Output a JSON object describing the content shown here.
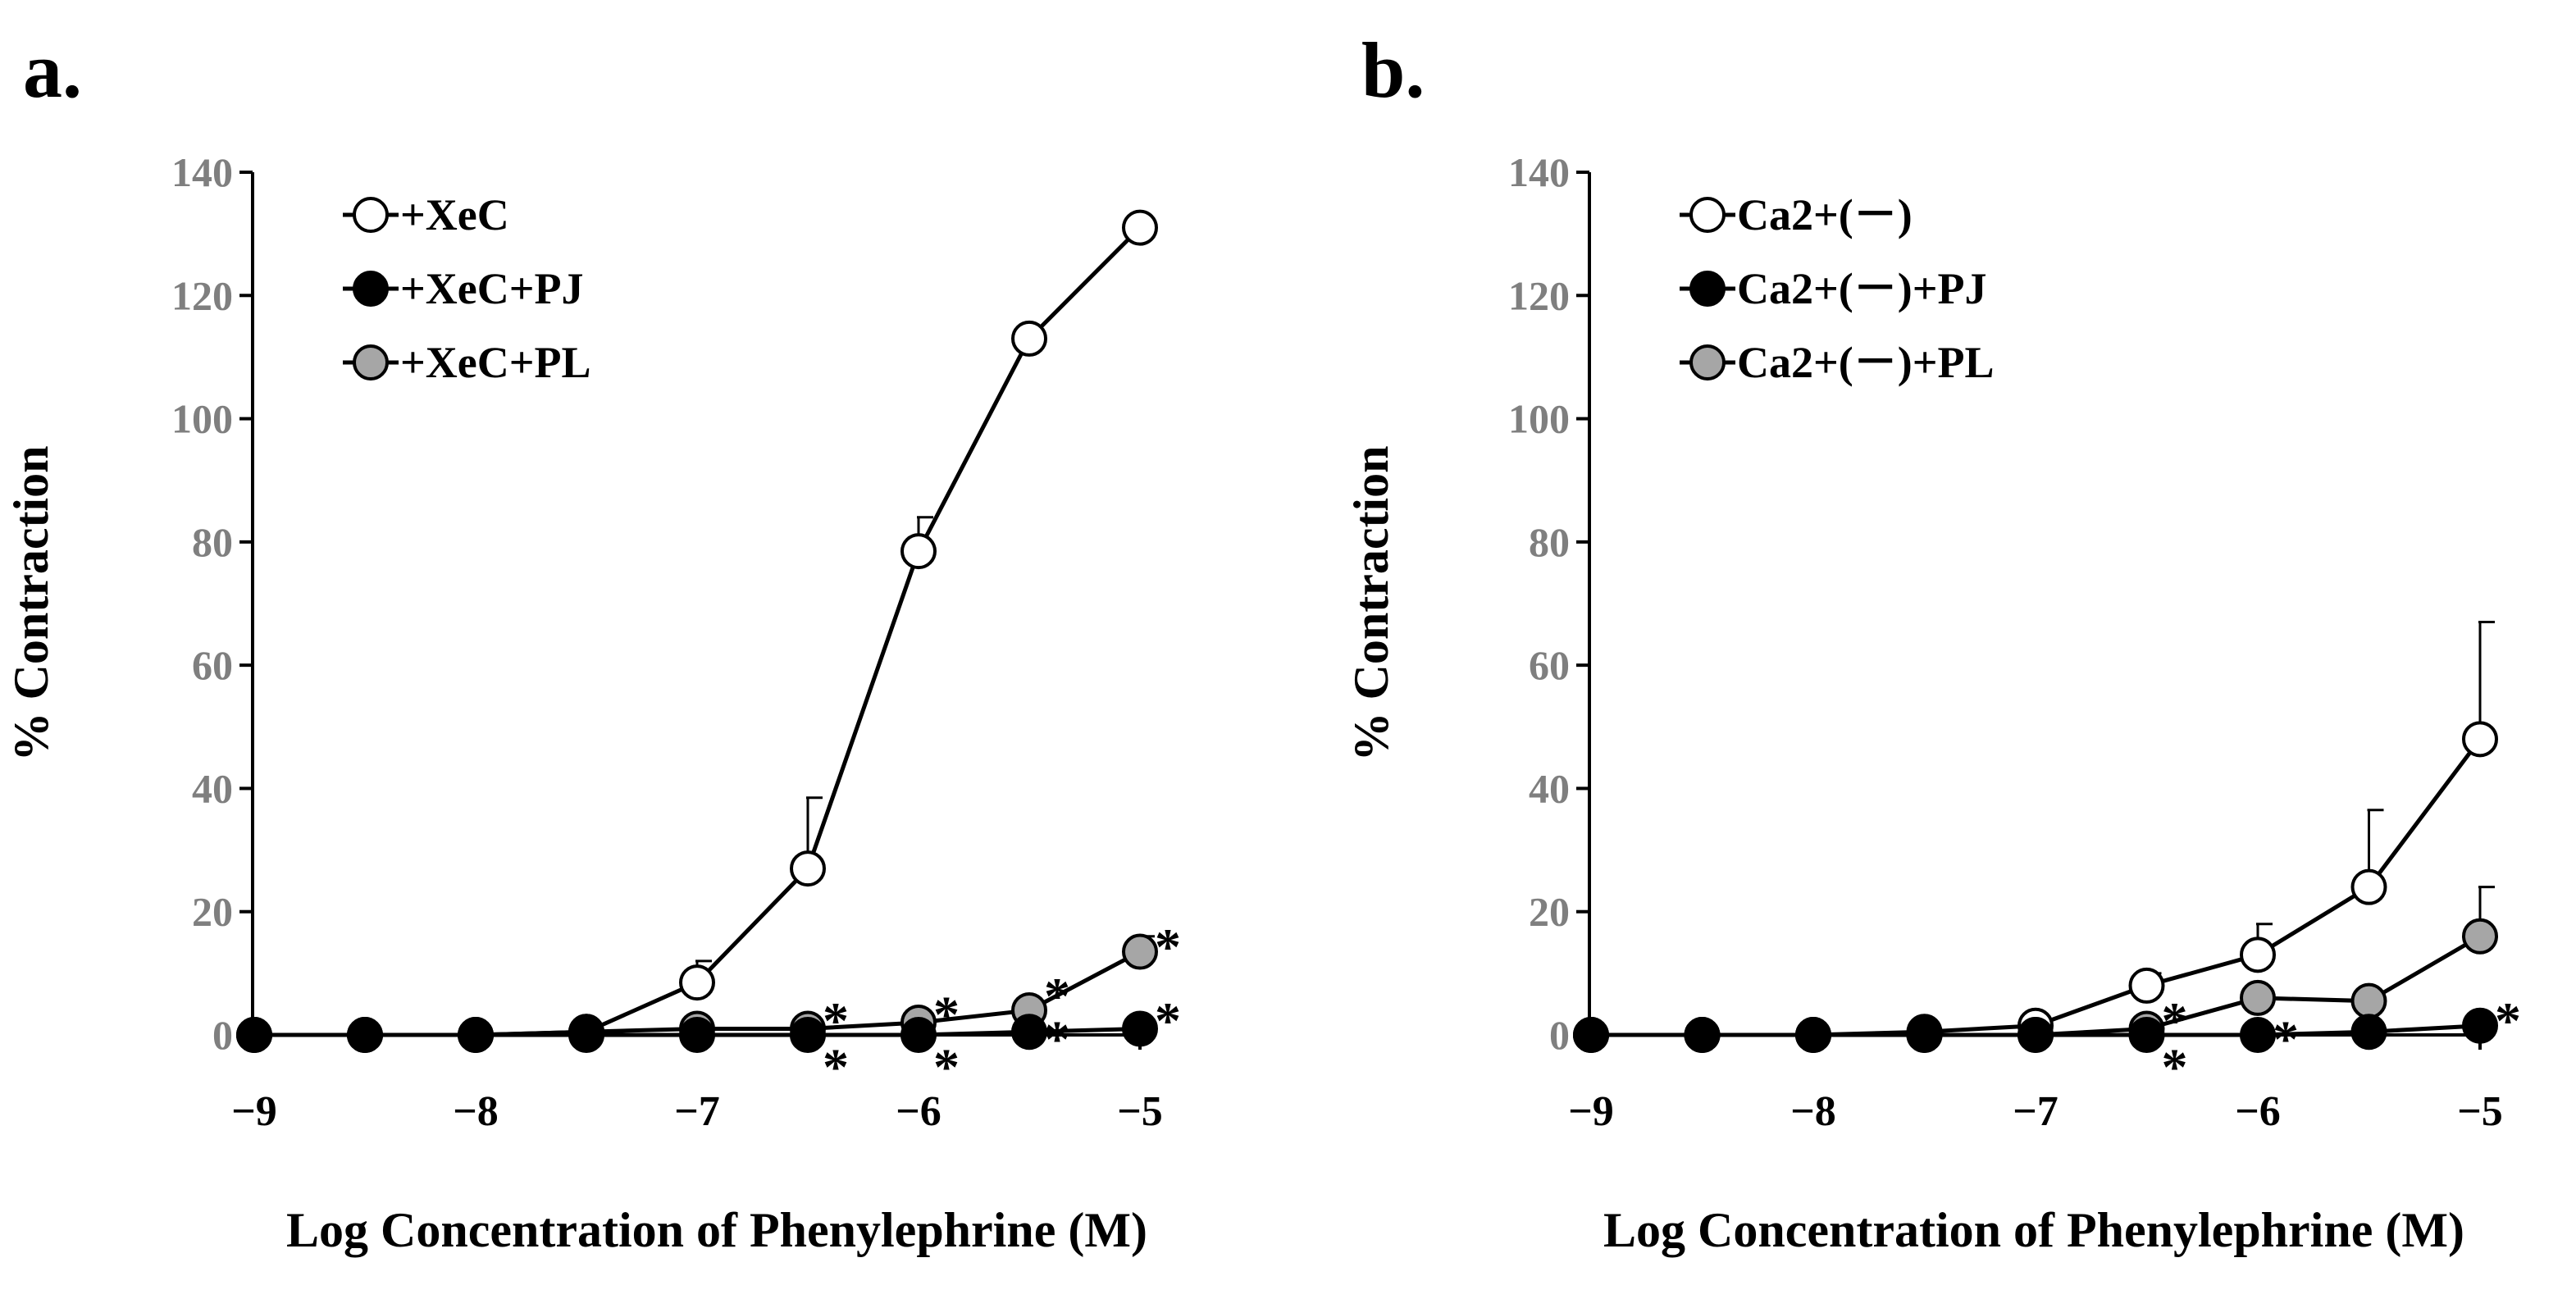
{
  "chart_data": [
    {
      "type": "line",
      "panel_label": "a.",
      "xlabel": "Log Concentration of Phenylephrine (M)",
      "ylabel": "% Contraction",
      "xlim": [
        -9,
        -5
      ],
      "ylim": [
        0,
        140
      ],
      "xticks": [
        -9,
        -8,
        -7,
        -6,
        -5
      ],
      "xtick_labels": [
        "−9",
        "−8",
        "−7",
        "−6",
        "−5"
      ],
      "yticks": [
        0,
        20,
        40,
        60,
        80,
        100,
        120,
        140
      ],
      "ytick_labels": [
        "0",
        "20",
        "40",
        "60",
        "80",
        "100",
        "120",
        "140"
      ],
      "legend_position": "top-left",
      "x": [
        -9,
        -8.5,
        -8,
        -7.5,
        -7,
        -6.5,
        -6,
        -5.5,
        -5
      ],
      "series": [
        {
          "name": "+XeC",
          "marker": "open",
          "fill": "#ffffff",
          "values": [
            0,
            0,
            0,
            0.5,
            8.5,
            27,
            78.5,
            113,
            131
          ],
          "errors": [
            0,
            0,
            0,
            0,
            3.5,
            11.5,
            5.5,
            0,
            0
          ]
        },
        {
          "name": "+XeC+PJ",
          "marker": "black",
          "fill": "#000000",
          "values": [
            0,
            0,
            0,
            0,
            0,
            0,
            0,
            0.5,
            1
          ],
          "errors": [
            0,
            0,
            0,
            0,
            0,
            0,
            0,
            0,
            0
          ]
        },
        {
          "name": "+XeC+PL",
          "marker": "gray",
          "fill": "#a6a6a6",
          "values": [
            0,
            0,
            0,
            0.5,
            1,
            1,
            2,
            4,
            13.5
          ],
          "errors": [
            0,
            0,
            0,
            0,
            0,
            0,
            0,
            0,
            2.5
          ]
        }
      ],
      "annotations": [
        {
          "text": "*",
          "x": -6.5,
          "y": 4
        },
        {
          "text": "*",
          "x": -6.5,
          "y": -3.5
        },
        {
          "text": "*",
          "x": -6,
          "y": 5
        },
        {
          "text": "*",
          "x": -6,
          "y": -3.5
        },
        {
          "text": "*",
          "x": -5.5,
          "y": 8
        },
        {
          "text": "*",
          "x": -5.5,
          "y": 1
        },
        {
          "text": "*",
          "x": -5,
          "y": 16
        },
        {
          "text": "*",
          "x": -5,
          "y": 4
        }
      ]
    },
    {
      "type": "line",
      "panel_label": "b.",
      "xlabel": "Log Concentration of Phenylephrine (M)",
      "ylabel": "% Contraction",
      "xlim": [
        -9,
        -5
      ],
      "ylim": [
        0,
        140
      ],
      "xticks": [
        -9,
        -8,
        -7,
        -6,
        -5
      ],
      "xtick_labels": [
        "−9",
        "−8",
        "−7",
        "−6",
        "−5"
      ],
      "yticks": [
        0,
        20,
        40,
        60,
        80,
        100,
        120,
        140
      ],
      "ytick_labels": [
        "0",
        "20",
        "40",
        "60",
        "80",
        "100",
        "120",
        "140"
      ],
      "legend_position": "top-left",
      "x": [
        -9,
        -8.5,
        -8,
        -7.5,
        -7,
        -6.5,
        -6,
        -5.5,
        -5
      ],
      "series": [
        {
          "name": "Ca2+(－)",
          "marker": "open",
          "fill": "#ffffff",
          "values": [
            0,
            0,
            0,
            0.5,
            1.5,
            8,
            13,
            24,
            48
          ],
          "errors": [
            0,
            0,
            0,
            0,
            0,
            2,
            5,
            12.5,
            19
          ]
        },
        {
          "name": "Ca2+(－)+PJ",
          "marker": "black",
          "fill": "#000000",
          "values": [
            0,
            0,
            0,
            0,
            0,
            0,
            0,
            0.5,
            1.5
          ],
          "errors": [
            0,
            0,
            0,
            0,
            0,
            0,
            0,
            0,
            0
          ]
        },
        {
          "name": "Ca2+(－)+PL",
          "marker": "gray",
          "fill": "#a6a6a6",
          "values": [
            0,
            0,
            0,
            0,
            0,
            1,
            6,
            5.5,
            16
          ],
          "errors": [
            0,
            0,
            0,
            0,
            0,
            0,
            0,
            0,
            8
          ]
        }
      ],
      "annotations": [
        {
          "text": "*",
          "x": -6.5,
          "y": 4
        },
        {
          "text": "*",
          "x": -6.5,
          "y": -3.5
        },
        {
          "text": "*",
          "x": -6,
          "y": 1
        },
        {
          "text": "*",
          "x": -5,
          "y": 4
        }
      ]
    }
  ]
}
